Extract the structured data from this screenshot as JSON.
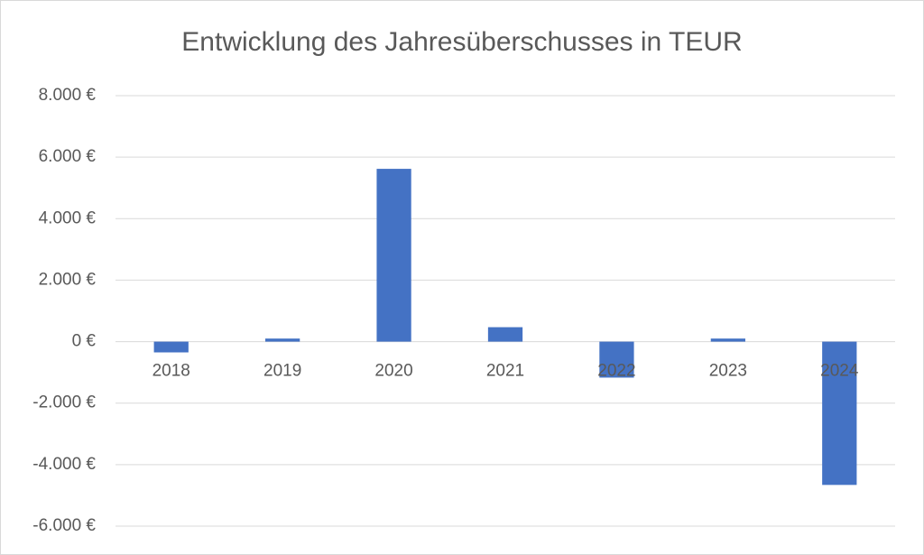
{
  "chart_data": {
    "type": "bar",
    "title": "Entwicklung des Jahresüberschusses in TEUR",
    "categories": [
      "2018",
      "2019",
      "2020",
      "2021",
      "2022",
      "2023",
      "2024"
    ],
    "values": [
      -350,
      100,
      5620,
      470,
      -1170,
      100,
      -4660
    ],
    "color": "#4472c4",
    "ylim": [
      -6000,
      8000
    ],
    "yticks": [
      {
        "value": -6000,
        "label": "-6.000 €"
      },
      {
        "value": -4000,
        "label": "-4.000 €"
      },
      {
        "value": -2000,
        "label": "-2.000 €"
      },
      {
        "value": 0,
        "label": "0 €"
      },
      {
        "value": 2000,
        "label": "2.000 €"
      },
      {
        "value": 4000,
        "label": "4.000 €"
      },
      {
        "value": 6000,
        "label": "6.000 €"
      },
      {
        "value": 8000,
        "label": "8.000 €"
      }
    ],
    "grid": true
  }
}
